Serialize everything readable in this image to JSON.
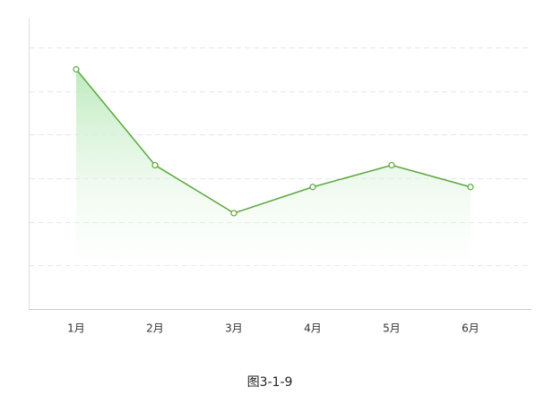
{
  "chart_data": {
    "type": "line",
    "caption": "图3-1-9",
    "categories": [
      "1月",
      "2月",
      "3月",
      "4月",
      "5月",
      "6月"
    ],
    "values": [
      5.5,
      3.3,
      2.2,
      2.8,
      3.3,
      2.8
    ],
    "color": "#5aa83c",
    "ylim": [
      0,
      6.7
    ],
    "yticks": [
      1,
      2,
      3,
      4,
      5,
      6
    ],
    "grid": true
  }
}
